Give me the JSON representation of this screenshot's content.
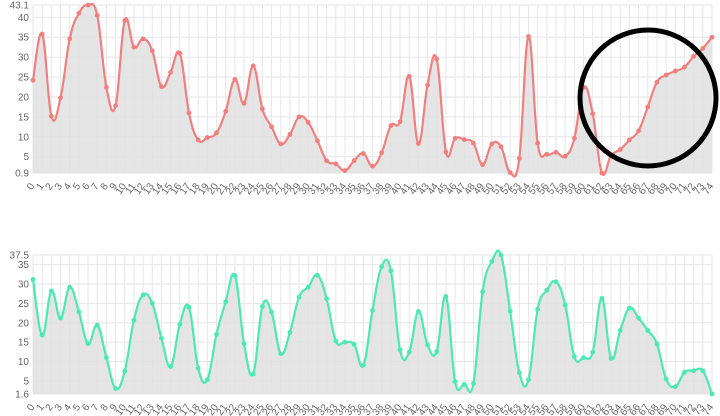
{
  "chart_data": [
    {
      "type": "area",
      "x": [
        "0",
        "1",
        "2",
        "3",
        "4",
        "5",
        "6",
        "7",
        "8",
        "9",
        "10",
        "11",
        "12",
        "13",
        "14",
        "15",
        "16",
        "17",
        "18",
        "19",
        "20",
        "21",
        "22",
        "23",
        "24",
        "25",
        "26",
        "27",
        "28",
        "29",
        "30",
        "31",
        "32",
        "33",
        "34",
        "35",
        "36",
        "37",
        "38",
        "39",
        "40",
        "41",
        "42",
        "43",
        "44",
        "45",
        "46",
        "47",
        "48",
        "49",
        "50",
        "51",
        "52",
        "53",
        "54",
        "55",
        "56",
        "57",
        "58",
        "59",
        "60",
        "61",
        "62",
        "63",
        "64",
        "65",
        "66",
        "67",
        "68",
        "69",
        "70",
        "71",
        "72",
        "73",
        "74"
      ],
      "series": [
        {
          "color": "#f08080",
          "values": [
            24.2,
            35.8,
            15.2,
            19.8,
            34.6,
            41,
            43.1,
            40.5,
            22.4,
            17.8,
            39.2,
            32.5,
            34.6,
            31.6,
            22.6,
            26.2,
            31,
            16,
            9.2,
            9.8,
            11,
            16.4,
            24.4,
            18.4,
            27.8,
            17,
            12.5,
            8.2,
            10.6,
            15,
            13.6,
            9,
            4,
            3.2,
            1.5,
            4,
            5.8,
            2.6,
            6,
            12.8,
            13.8,
            25.2,
            8.3,
            23,
            29.5,
            6.2,
            9.6,
            9.3,
            8.4,
            3,
            8.2,
            7.5,
            1,
            4.6,
            35.2,
            8.4,
            5.6,
            6.1,
            5.1,
            9.6,
            22.4,
            15.8,
            0.9,
            5.3,
            6.8,
            9.2,
            11.5,
            17.5,
            23.7,
            25.5,
            26.5,
            27.5,
            30.2,
            32.2,
            35
          ]
        }
      ],
      "ylim": [
        0.9,
        43.1
      ],
      "yticks": [
        "0.9",
        "5",
        "10",
        "15",
        "20",
        "25",
        "30",
        "35",
        "40",
        "43.1"
      ],
      "grid": true,
      "annotation": "circle"
    },
    {
      "type": "area",
      "x": [
        "0",
        "1",
        "2",
        "3",
        "4",
        "5",
        "6",
        "7",
        "8",
        "9",
        "10",
        "11",
        "12",
        "13",
        "14",
        "15",
        "16",
        "17",
        "18",
        "19",
        "20",
        "21",
        "22",
        "23",
        "24",
        "25",
        "26",
        "27",
        "28",
        "29",
        "30",
        "31",
        "32",
        "33",
        "34",
        "35",
        "36",
        "37",
        "38",
        "39",
        "40",
        "41",
        "42",
        "43",
        "44",
        "45",
        "46",
        "47",
        "48",
        "49",
        "50",
        "51",
        "52",
        "53",
        "54",
        "55",
        "56",
        "57",
        "58",
        "59",
        "60",
        "61",
        "62",
        "63",
        "64",
        "65",
        "66",
        "67",
        "68",
        "69",
        "70",
        "71",
        "72",
        "73",
        "74"
      ],
      "series": [
        {
          "color": "#4de8b4",
          "values": [
            31.2,
            16.8,
            28.2,
            21.2,
            29.2,
            22.8,
            14.6,
            19.4,
            11,
            3,
            7.5,
            20.7,
            27.2,
            25,
            16,
            8.7,
            19.6,
            24,
            8.3,
            5.3,
            17,
            25.4,
            32.2,
            14.6,
            6.8,
            24.2,
            22.7,
            12,
            17.5,
            26.6,
            29.2,
            32.3,
            26.2,
            15.3,
            15,
            14.4,
            9,
            23.2,
            34.5,
            33.4,
            13,
            12.4,
            22.9,
            14.3,
            12.6,
            26.8,
            4.8,
            4.1,
            4.3,
            28,
            35.8,
            37.5,
            23,
            7.1,
            5.3,
            23.5,
            28.4,
            30.6,
            24.6,
            11.2,
            11,
            12.4,
            26.3,
            10.8,
            18,
            23.8,
            21.2,
            18,
            14.5,
            5.5,
            3.5,
            7.2,
            7.6,
            7.6,
            1.6
          ]
        }
      ],
      "ylim": [
        1.6,
        37.5
      ],
      "yticks": [
        "1.6",
        "5",
        "10",
        "15",
        "20",
        "25",
        "30",
        "35",
        "37.5"
      ],
      "grid": true
    }
  ]
}
